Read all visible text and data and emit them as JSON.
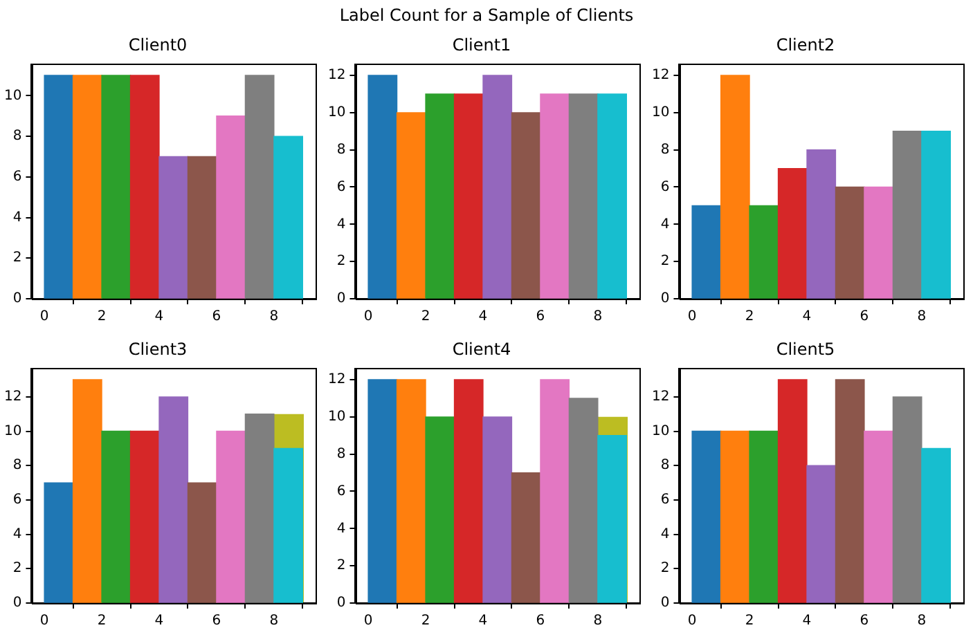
{
  "chart_data": [
    {
      "type": "other",
      "title": "Label Count for a Sample of Clients"
    },
    {
      "type": "histogram",
      "title": "Client0",
      "bins": [
        0,
        1,
        2,
        3,
        4,
        5,
        6,
        7,
        8,
        9
      ],
      "xlim": [
        -0.45,
        9.45
      ],
      "xticks": [
        0,
        2,
        4,
        6,
        8
      ],
      "ylim": [
        0,
        11.55
      ],
      "yticks": [
        0,
        2,
        4,
        6,
        8,
        10
      ],
      "series": [
        {
          "colors": [
            "#1f77b4",
            "#ff7f0e",
            "#2ca02c",
            "#d62728",
            "#9467bd",
            "#8c564b",
            "#e377c2",
            "#7f7f7f",
            "#17becf"
          ],
          "values": [
            11,
            11,
            11,
            11,
            7,
            7,
            9,
            11,
            8
          ]
        }
      ]
    },
    {
      "type": "histogram",
      "title": "Client1",
      "bins": [
        0,
        1,
        2,
        3,
        4,
        5,
        6,
        7,
        8,
        9
      ],
      "xlim": [
        -0.45,
        9.45
      ],
      "xticks": [
        0,
        2,
        4,
        6,
        8
      ],
      "ylim": [
        0,
        12.6
      ],
      "yticks": [
        0,
        2,
        4,
        6,
        8,
        10,
        12
      ],
      "series": [
        {
          "colors": [
            "#1f77b4",
            "#ff7f0e",
            "#2ca02c",
            "#d62728",
            "#9467bd",
            "#8c564b",
            "#e377c2",
            "#7f7f7f",
            "#17becf"
          ],
          "values": [
            12,
            10,
            11,
            11,
            12,
            10,
            11,
            11,
            11
          ]
        }
      ]
    },
    {
      "type": "histogram",
      "title": "Client2",
      "bins": [
        0,
        1,
        2,
        3,
        4,
        5,
        6,
        7,
        8,
        9
      ],
      "xlim": [
        -0.45,
        9.45
      ],
      "xticks": [
        0,
        2,
        4,
        6,
        8
      ],
      "ylim": [
        0,
        12.6
      ],
      "yticks": [
        0,
        2,
        4,
        6,
        8,
        10,
        12
      ],
      "series": [
        {
          "colors": [
            "#1f77b4",
            "#ff7f0e",
            "#2ca02c",
            "#d62728",
            "#9467bd",
            "#8c564b",
            "#e377c2",
            "#7f7f7f",
            "#17becf"
          ],
          "values": [
            5,
            12,
            5,
            7,
            8,
            6,
            6,
            9,
            9
          ]
        }
      ]
    },
    {
      "type": "histogram",
      "title": "Client3",
      "bins": [
        0,
        1,
        2,
        3,
        4,
        5,
        6,
        7,
        8,
        9
      ],
      "xlim": [
        -0.45,
        9.45
      ],
      "xticks": [
        0,
        2,
        4,
        6,
        8
      ],
      "ylim": [
        0,
        13.65
      ],
      "yticks": [
        0,
        2,
        4,
        6,
        8,
        10,
        12
      ],
      "series": [
        {
          "colors": [
            "#1f77b4",
            "#ff7f0e",
            "#2ca02c",
            "#d62728",
            "#9467bd",
            "#8c564b",
            "#e377c2",
            "#7f7f7f",
            "#17becf"
          ],
          "values": [
            7,
            13,
            10,
            10,
            12,
            7,
            10,
            11,
            9
          ]
        },
        {
          "color": "#bcbd22",
          "values": [
            null,
            null,
            null,
            null,
            null,
            null,
            null,
            null,
            11
          ]
        }
      ]
    },
    {
      "type": "histogram",
      "title": "Client4",
      "bins": [
        0,
        1,
        2,
        3,
        4,
        5,
        6,
        7,
        8,
        9
      ],
      "xlim": [
        -0.45,
        9.45
      ],
      "xticks": [
        0,
        2,
        4,
        6,
        8
      ],
      "ylim": [
        0,
        12.6
      ],
      "yticks": [
        0,
        2,
        4,
        6,
        8,
        10,
        12
      ],
      "series": [
        {
          "colors": [
            "#1f77b4",
            "#ff7f0e",
            "#2ca02c",
            "#d62728",
            "#9467bd",
            "#8c564b",
            "#e377c2",
            "#7f7f7f",
            "#17becf"
          ],
          "values": [
            12,
            12,
            10,
            12,
            10,
            7,
            12,
            11,
            9
          ]
        },
        {
          "color": "#bcbd22",
          "values": [
            null,
            null,
            null,
            null,
            null,
            null,
            null,
            null,
            10
          ]
        }
      ]
    },
    {
      "type": "histogram",
      "title": "Client5",
      "bins": [
        0,
        1,
        2,
        3,
        4,
        5,
        6,
        7,
        8,
        9
      ],
      "xlim": [
        -0.45,
        9.45
      ],
      "xticks": [
        0,
        2,
        4,
        6,
        8
      ],
      "ylim": [
        0,
        13.65
      ],
      "yticks": [
        0,
        2,
        4,
        6,
        8,
        10,
        12
      ],
      "series": [
        {
          "colors": [
            "#1f77b4",
            "#ff7f0e",
            "#2ca02c",
            "#d62728",
            "#9467bd",
            "#8c564b",
            "#e377c2",
            "#7f7f7f",
            "#17becf"
          ],
          "values": [
            10,
            10,
            10,
            13,
            8,
            13,
            10,
            12,
            9
          ]
        }
      ]
    }
  ]
}
